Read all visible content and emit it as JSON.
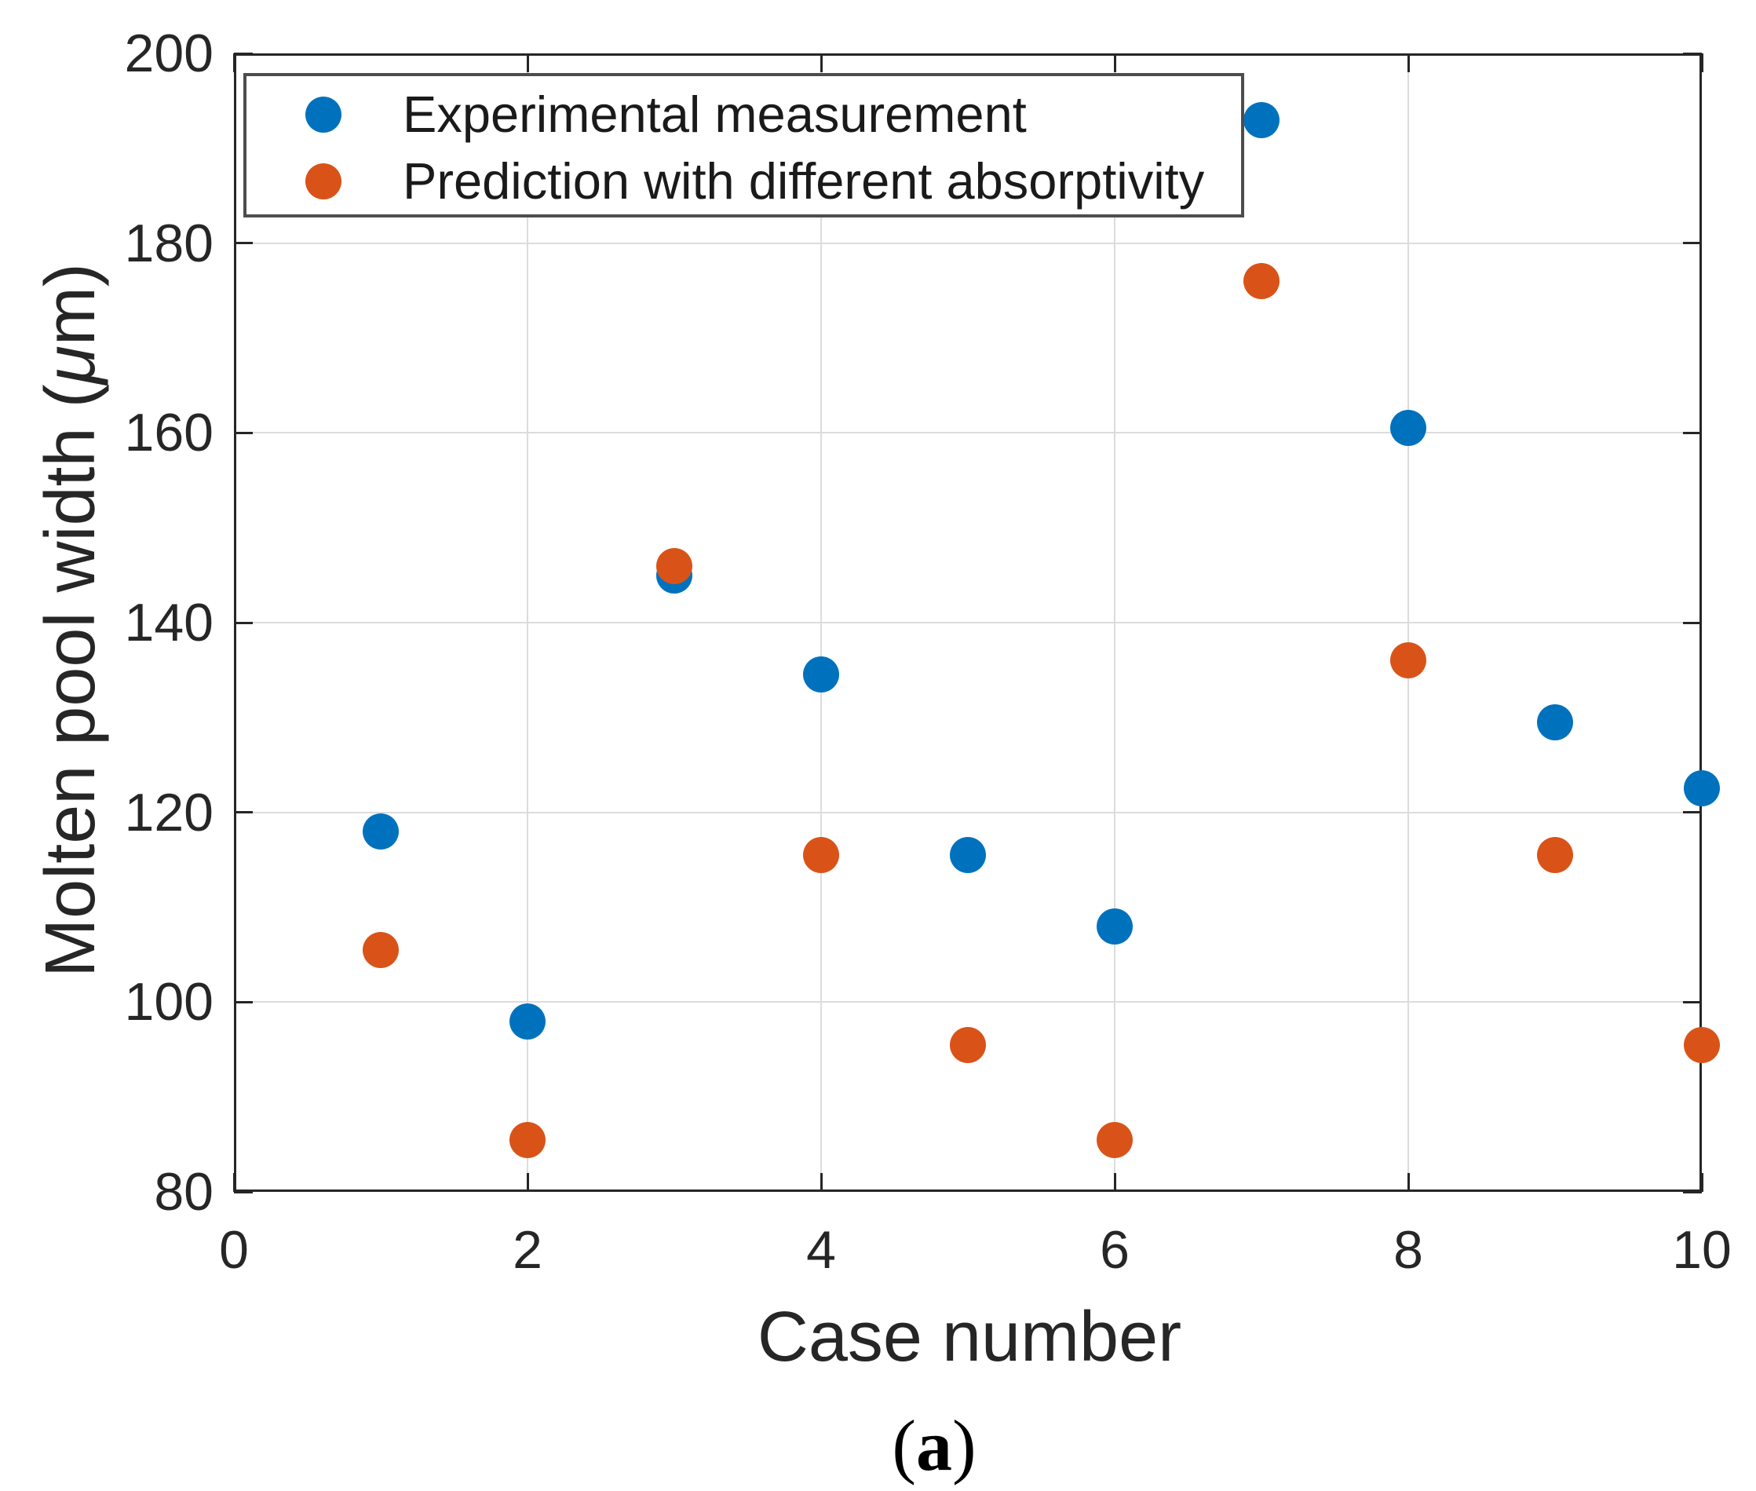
{
  "figure": {
    "caption": {
      "open": "(",
      "letter": "a",
      "close": ")"
    }
  },
  "labels": {
    "ylabel_prefix": "Molten pool width (",
    "ylabel_mu": "μ",
    "ylabel_suffix": "m)"
  },
  "chart_data": {
    "type": "scatter",
    "title": "",
    "xlabel": "Case number",
    "ylabel": "Molten pool width (μm)",
    "xlim": [
      0,
      10
    ],
    "ylim": [
      80,
      200
    ],
    "x_ticks": [
      0,
      2,
      4,
      6,
      8,
      10
    ],
    "y_ticks": [
      80,
      100,
      120,
      140,
      160,
      180,
      200
    ],
    "grid": true,
    "legend_position": "top-left",
    "x": [
      1,
      2,
      3,
      4,
      5,
      6,
      7,
      8,
      9,
      10
    ],
    "series": [
      {
        "key": "experimental",
        "name": "Experimental measurement",
        "color": "#0072BD",
        "marker": "circle",
        "values": [
          118,
          98,
          145,
          134.5,
          115.5,
          108,
          193,
          160.5,
          129.5,
          122.5
        ]
      },
      {
        "key": "prediction",
        "name": "Prediction with different absorptivity",
        "color": "#D95319",
        "marker": "circle",
        "values": [
          105.5,
          85.5,
          146,
          115.5,
          95.5,
          85.5,
          176,
          136,
          115.5,
          95.5
        ]
      }
    ],
    "colors": {
      "axis": "#262626",
      "grid": "#dcdcdc",
      "legend_border": "#4d4d4d"
    }
  }
}
